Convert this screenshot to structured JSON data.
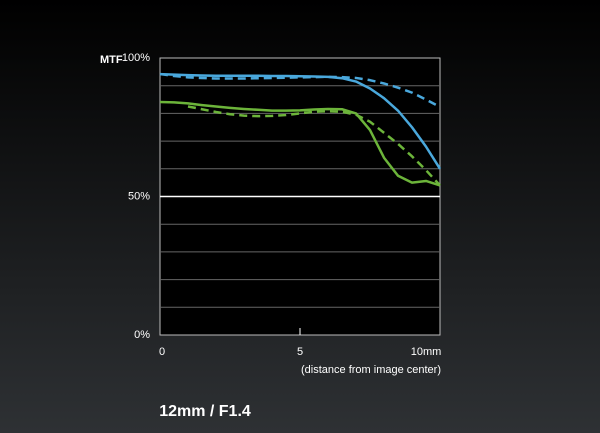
{
  "chart_data": {
    "type": "line",
    "ylabel": "MTF",
    "xlabel": "(distance from image center)",
    "caption": "12mm / F1.4",
    "x": [
      0,
      0.5,
      1,
      1.5,
      2,
      2.5,
      3,
      3.5,
      4,
      4.5,
      5,
      5.5,
      6,
      6.5,
      7,
      7.5,
      8,
      8.5,
      9,
      9.5,
      10
    ],
    "series": [
      {
        "color": "#4aa8dc",
        "dash": false,
        "values": [
          94.2,
          94,
          93.8,
          93.7,
          93.6,
          93.6,
          93.6,
          93.6,
          93.5,
          93.5,
          93.4,
          93.3,
          93.2,
          92.7,
          91.5,
          89,
          85.5,
          81,
          75,
          68,
          60
        ]
      },
      {
        "color": "#4aa8dc",
        "dash": true,
        "values": [
          94.2,
          93.5,
          93,
          92.8,
          92.6,
          92.6,
          92.6,
          92.7,
          92.8,
          92.9,
          93,
          93.1,
          93.2,
          93.1,
          92.8,
          92,
          90.8,
          89.3,
          87.5,
          85,
          82.3
        ]
      },
      {
        "color": "#6cb43a",
        "dash": false,
        "values": [
          84.1,
          84,
          83.6,
          83,
          82.5,
          82,
          81.6,
          81.3,
          81,
          81,
          81.1,
          81.4,
          81.6,
          81.5,
          80,
          74,
          64,
          57.5,
          55,
          55.6,
          54
        ]
      },
      {
        "color": "#6cb43a",
        "dash": true,
        "values": [
          null,
          null,
          82.5,
          81.5,
          80.5,
          79.7,
          79.2,
          79,
          79.1,
          79.4,
          80,
          80.6,
          80.8,
          80.6,
          79.5,
          77,
          73,
          69,
          64.5,
          59.5,
          54
        ]
      }
    ],
    "xlim": [
      0,
      10
    ],
    "xticks": [
      0,
      5,
      {
        "value": 10,
        "label": "10mm"
      }
    ],
    "ylim": [
      0,
      100
    ],
    "yticks": [
      {
        "value": 0,
        "label": "0%"
      },
      {
        "value": 10,
        "label": null
      },
      {
        "value": 20,
        "label": null
      },
      {
        "value": 30,
        "label": null
      },
      {
        "value": 40,
        "label": null
      },
      {
        "value": 50,
        "label": "50%"
      },
      {
        "value": 60,
        "label": null
      },
      {
        "value": 70,
        "label": null
      },
      {
        "value": 80,
        "label": null
      },
      {
        "value": 90,
        "label": null
      },
      {
        "value": 100,
        "label": "100%"
      }
    ],
    "grid": true
  }
}
